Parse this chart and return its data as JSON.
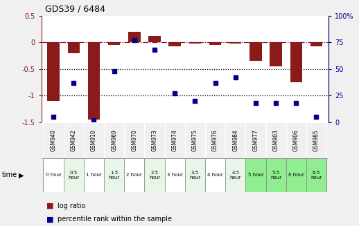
{
  "title": "GDS39 / 6484",
  "samples": [
    "GSM940",
    "GSM942",
    "GSM910",
    "GSM969",
    "GSM970",
    "GSM973",
    "GSM974",
    "GSM975",
    "GSM976",
    "GSM984",
    "GSM977",
    "GSM903",
    "GSM906",
    "GSM985"
  ],
  "time_labels": [
    "0 hour",
    "0.5\nhour",
    "1 hour",
    "1.5\nhour",
    "2 hour",
    "2.5\nhour",
    "3 hour",
    "3.5\nhour",
    "4 hour",
    "4.5\nhour",
    "5 hour",
    "5.5\nhour",
    "6 hour",
    "6.5\nhour"
  ],
  "log_ratio": [
    -1.1,
    -0.2,
    -1.45,
    -0.05,
    0.2,
    0.12,
    -0.08,
    -0.02,
    -0.05,
    -0.02,
    -0.35,
    -0.45,
    -0.75,
    -0.08
  ],
  "percentile": [
    5,
    37,
    2,
    48,
    77,
    68,
    27,
    20,
    37,
    42,
    18,
    18,
    18,
    5
  ],
  "time_colors": [
    "#ffffff",
    "#e8f5e8",
    "#ffffff",
    "#e8f5e8",
    "#ffffff",
    "#e8f5e8",
    "#ffffff",
    "#e8f5e8",
    "#ffffff",
    "#e8f5e8",
    "#90ee90",
    "#90ee90",
    "#90ee90",
    "#90ee90"
  ],
  "bar_color": "#8b1a1a",
  "dot_color": "#00008b",
  "ylim_left": [
    -1.5,
    0.5
  ],
  "ylim_right": [
    0,
    100
  ],
  "y_right_ticks": [
    0,
    25,
    50,
    75,
    100
  ],
  "y_right_labels": [
    "0",
    "25",
    "50",
    "75",
    "100%"
  ],
  "background_color": "#f0f0f0",
  "plot_bg": "#ffffff",
  "legend_red": "log ratio",
  "legend_blue": "percentile rank within the sample"
}
